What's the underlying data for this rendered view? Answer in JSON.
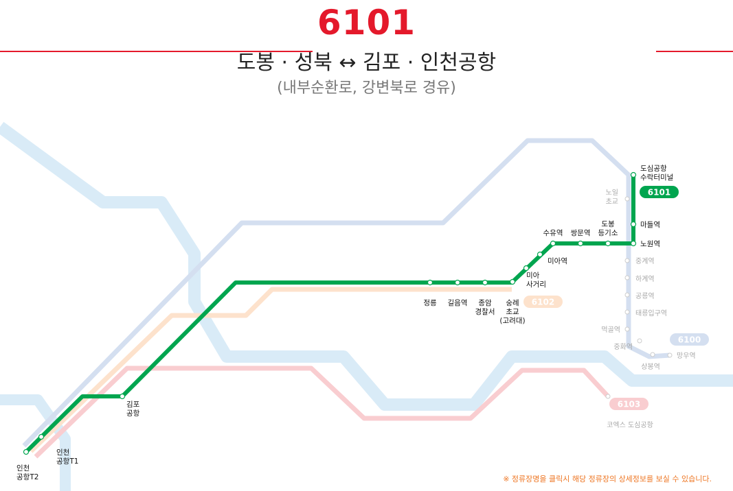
{
  "header": {
    "route_number": "6101",
    "title": "도봉 · 성북 ↔ 김포 · 인천공항",
    "subtitle": "(내부순환로, 강변북로 경유)"
  },
  "colors": {
    "accent": "#e4192b",
    "route_6101": "#00a54f",
    "route_6102": "#fde2cc",
    "route_6103": "#f9cdd0",
    "route_6100": "#d4dff0",
    "river": "#d9ebf7",
    "notice": "#ee7623"
  },
  "routes": {
    "main": {
      "badge": "6101"
    },
    "other": [
      {
        "badge": "6102"
      },
      {
        "badge": "6100"
      },
      {
        "badge": "6103"
      }
    ]
  },
  "stops": {
    "dosim": "도심공항\n수락터미널",
    "mandeul": "마들역",
    "nowon": "노원역",
    "dobong_gigiso": "도봉\n등기소",
    "ssangmun": "쌍문역",
    "suyu": "수유역",
    "mia": "미아역",
    "mia_sageori": "미아\n사거리",
    "sungrye": "숭례\n초교\n(고려대)",
    "jongam": "종암\n경찰서",
    "gireum": "길음역",
    "jeongneung": "정릉",
    "gimpo": "김포\n공항",
    "icn_t1": "인천\n공항T1",
    "icn_t2": "인천\n공항T2"
  },
  "other_stops": {
    "noil": "노일\n초교",
    "junggye": "중계역",
    "hagye": "하계역",
    "gongneung": "공릉역",
    "taereung": "태릉입구역",
    "meokgol": "먹골역",
    "junghwa": "중화역",
    "sangbong": "상봉역",
    "mangu": "망우역",
    "coex": "코엑스 도심공항"
  },
  "notice": "※ 정류장명을 클릭시 해당 정류장의 상세정보를 보실 수 있습니다."
}
